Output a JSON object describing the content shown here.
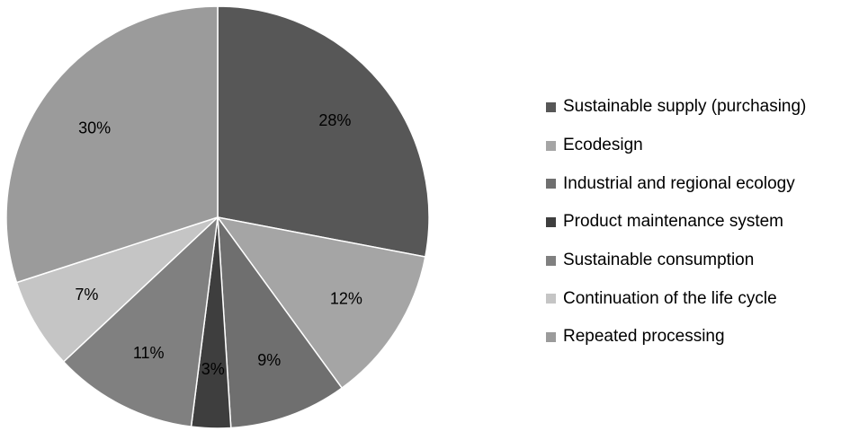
{
  "chart_data": {
    "type": "pie",
    "title": "",
    "legend_position": "right",
    "start_angle_deg": 0,
    "direction": "clockwise",
    "slices": [
      {
        "label": "Sustainable supply (purchasing)",
        "value": 28,
        "value_label": "28%",
        "color": "#575757"
      },
      {
        "label": "Ecodesign",
        "value": 12,
        "value_label": "12%",
        "color": "#a5a5a5"
      },
      {
        "label": "Industrial and regional ecology",
        "value": 9,
        "value_label": "9%",
        "color": "#6f6f6f"
      },
      {
        "label": "Product maintenance system",
        "value": 3,
        "value_label": "3%",
        "color": "#3e3e3e"
      },
      {
        "label": "Sustainable consumption",
        "value": 11,
        "value_label": "11%",
        "color": "#808080"
      },
      {
        "label": "Continuation of the life cycle",
        "value": 7,
        "value_label": "7%",
        "color": "#c5c5c5"
      },
      {
        "label": "Repeated processing",
        "value": 30,
        "value_label": "30%",
        "color": "#9b9b9b"
      }
    ]
  }
}
